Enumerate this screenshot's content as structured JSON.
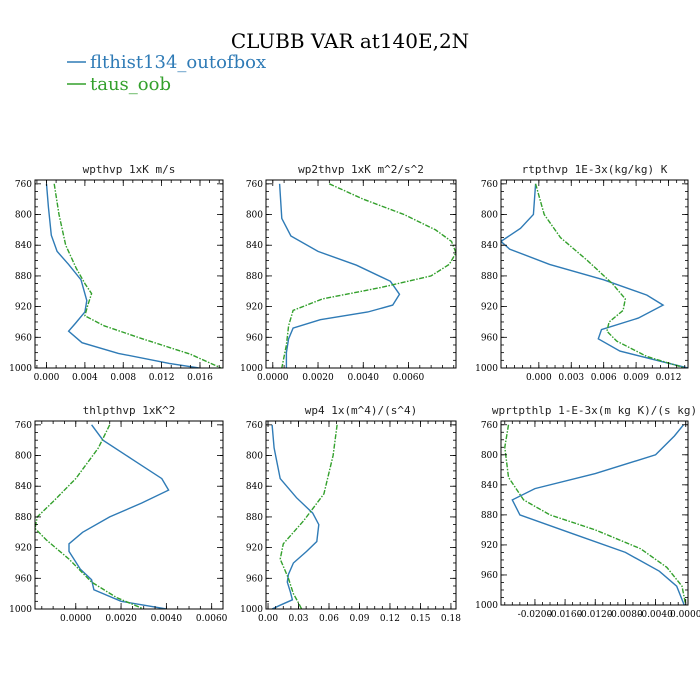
{
  "figure": {
    "title": "CLUBB VAR at140E,2N",
    "legend": [
      {
        "label": "flthist134_outofbox",
        "color": "#2f7bb6"
      },
      {
        "label": "taus_oob",
        "color": "#33a02c"
      }
    ]
  },
  "chart_data": [
    {
      "type": "line",
      "title": "wpthvp   1xK m/s",
      "xlim": [
        -0.0012,
        0.0184
      ],
      "ylim": [
        1000,
        755
      ],
      "y_inverted": true,
      "xticks": [
        "0.000",
        "0.004",
        "0.008",
        "0.012",
        "0.016"
      ],
      "xtick_values": [
        0.0,
        0.004,
        0.008,
        0.012,
        0.016
      ],
      "yticks": [
        "760",
        "800",
        "840",
        "880",
        "920",
        "960",
        "1000"
      ],
      "ytick_values": [
        760,
        800,
        840,
        880,
        920,
        960,
        1000
      ],
      "series": [
        {
          "name": "flthist134_outofbox",
          "color": "#2f7bb6",
          "dashed": false,
          "x": [
            0.0,
            0.0002,
            0.0005,
            0.0011,
            0.0023,
            0.0036,
            0.0042,
            0.004,
            0.003,
            0.0023,
            0.0037,
            0.0075,
            0.0128,
            0.0159
          ],
          "y": [
            760,
            790,
            827,
            848,
            865,
            885,
            912,
            927,
            942,
            952,
            967,
            981,
            994,
            1000
          ]
        },
        {
          "name": "taus_oob",
          "color": "#33a02c",
          "dashed": true,
          "x": [
            0.0008,
            0.0013,
            0.002,
            0.0031,
            0.004,
            0.0047,
            0.0043,
            0.004,
            0.006,
            0.01,
            0.015,
            0.0182
          ],
          "y": [
            760,
            800,
            840,
            870,
            890,
            903,
            918,
            932,
            945,
            962,
            982,
            1000
          ]
        }
      ]
    },
    {
      "type": "line",
      "title": "wp2thvp   1xK m^2/s^2",
      "xlim": [
        -0.0003,
        0.0081
      ],
      "ylim": [
        1000,
        755
      ],
      "y_inverted": true,
      "xticks": [
        "0.0000",
        "0.0020",
        "0.0040",
        "0.0060"
      ],
      "xtick_values": [
        0.0,
        0.002,
        0.004,
        0.006
      ],
      "yticks": [
        "760",
        "800",
        "840",
        "880",
        "920",
        "960",
        "1000"
      ],
      "ytick_values": [
        760,
        800,
        840,
        880,
        920,
        960,
        1000
      ],
      "series": [
        {
          "name": "flthist134_outofbox",
          "color": "#2f7bb6",
          "dashed": false,
          "x": [
            0.0003,
            0.0004,
            0.0008,
            0.002,
            0.0037,
            0.0052,
            0.0056,
            0.0053,
            0.0042,
            0.0021,
            0.0009,
            0.0007,
            0.0006,
            0.0006
          ],
          "y": [
            760,
            805,
            828,
            848,
            866,
            887,
            904,
            918,
            927,
            937,
            948,
            962,
            980,
            1000
          ]
        },
        {
          "name": "taus_oob",
          "color": "#33a02c",
          "dashed": true,
          "x": [
            0.0025,
            0.004,
            0.0058,
            0.0072,
            0.0079,
            0.0081,
            0.0078,
            0.007,
            0.0048,
            0.0022,
            0.0009,
            0.0007,
            0.0006,
            0.0004
          ],
          "y": [
            760,
            780,
            800,
            820,
            835,
            850,
            865,
            880,
            895,
            910,
            925,
            945,
            970,
            1000
          ]
        }
      ]
    },
    {
      "type": "line",
      "title": "rtpthvp   1E-3x(kg/kg) K",
      "xlim": [
        -0.0035,
        0.0138
      ],
      "ylim": [
        1000,
        755
      ],
      "y_inverted": true,
      "xticks": [
        "0.000",
        "0.003",
        "0.006",
        "0.009",
        "0.012"
      ],
      "xtick_values": [
        0.0,
        0.003,
        0.006,
        0.009,
        0.012
      ],
      "yticks": [
        "760",
        "800",
        "840",
        "880",
        "920",
        "960",
        "1000"
      ],
      "ytick_values": [
        760,
        800,
        840,
        880,
        920,
        960,
        1000
      ],
      "series": [
        {
          "name": "flthist134_outofbox",
          "color": "#2f7bb6",
          "dashed": false,
          "x": [
            -0.0003,
            -0.0005,
            -0.0017,
            -0.0035,
            -0.0027,
            0.001,
            0.006,
            0.01,
            0.0115,
            0.0092,
            0.0058,
            0.0055,
            0.0075,
            0.0115,
            0.0138
          ],
          "y": [
            760,
            800,
            818,
            835,
            845,
            865,
            885,
            905,
            918,
            935,
            950,
            962,
            978,
            992,
            1000
          ]
        },
        {
          "name": "taus_oob",
          "color": "#33a02c",
          "dashed": true,
          "x": [
            -0.0003,
            0.0005,
            0.002,
            0.0045,
            0.0068,
            0.008,
            0.0078,
            0.0065,
            0.0063,
            0.0072,
            0.01,
            0.0135
          ],
          "y": [
            760,
            800,
            830,
            860,
            890,
            910,
            925,
            940,
            952,
            965,
            985,
            1000
          ]
        }
      ]
    },
    {
      "type": "line",
      "title": "thlpthvp   1xK^2",
      "xlim": [
        -0.0018,
        0.0065
      ],
      "ylim": [
        1000,
        755
      ],
      "y_inverted": true,
      "xticks": [
        "0.0000",
        "0.0020",
        "0.0040",
        "0.0060"
      ],
      "xtick_values": [
        0.0,
        0.002,
        0.004,
        0.006
      ],
      "yticks": [
        "760",
        "800",
        "840",
        "880",
        "920",
        "960",
        "1000"
      ],
      "ytick_values": [
        760,
        800,
        840,
        880,
        920,
        960,
        1000
      ],
      "series": [
        {
          "name": "flthist134_outofbox",
          "color": "#2f7bb6",
          "dashed": false,
          "x": [
            0.0007,
            0.0012,
            0.0025,
            0.0038,
            0.0041,
            0.0029,
            0.0015,
            0.0003,
            -0.0003,
            -0.0003,
            0.0002,
            0.0007,
            0.0008,
            0.002,
            0.004
          ],
          "y": [
            760,
            780,
            805,
            830,
            845,
            862,
            880,
            900,
            915,
            925,
            948,
            962,
            975,
            990,
            1000
          ]
        },
        {
          "name": "taus_oob",
          "color": "#33a02c",
          "dashed": true,
          "x": [
            0.0015,
            0.001,
            0.0,
            -0.001,
            -0.0017,
            -0.0018,
            -0.0013,
            -0.0003,
            0.0007,
            0.0018,
            0.003
          ],
          "y": [
            760,
            790,
            830,
            860,
            880,
            895,
            910,
            935,
            965,
            985,
            1000
          ]
        }
      ]
    },
    {
      "type": "line",
      "title": "wp4   1x(m^4)/(s^4)",
      "xlim": [
        -0.002,
        0.185
      ],
      "ylim": [
        1000,
        755
      ],
      "y_inverted": true,
      "xticks": [
        "0.00",
        "0.03",
        "0.06",
        "0.09",
        "0.12",
        "0.15",
        "0.18"
      ],
      "xtick_values": [
        0.0,
        0.03,
        0.06,
        0.09,
        0.12,
        0.15,
        0.18
      ],
      "yticks": [
        "760",
        "800",
        "840",
        "880",
        "920",
        "960",
        "1000"
      ],
      "ytick_values": [
        760,
        800,
        840,
        880,
        920,
        960,
        1000
      ],
      "series": [
        {
          "name": "flthist134_outofbox",
          "color": "#2f7bb6",
          "dashed": false,
          "x": [
            0.004,
            0.006,
            0.012,
            0.028,
            0.044,
            0.05,
            0.048,
            0.038,
            0.025,
            0.02,
            0.019,
            0.022,
            0.024,
            0.012,
            0.004
          ],
          "y": [
            760,
            790,
            830,
            855,
            875,
            890,
            912,
            925,
            940,
            955,
            965,
            978,
            988,
            995,
            1000
          ]
        },
        {
          "name": "taus_oob",
          "color": "#33a02c",
          "dashed": true,
          "x": [
            0.068,
            0.064,
            0.055,
            0.035,
            0.015,
            0.012,
            0.02,
            0.025,
            0.03,
            0.033
          ],
          "y": [
            760,
            800,
            850,
            885,
            915,
            935,
            960,
            980,
            992,
            1000
          ]
        }
      ]
    },
    {
      "type": "line",
      "title": "wprtpthlp   1-E-3x(m kg K)/(s kg)",
      "xlim": [
        -0.0245,
        0.0003
      ],
      "ylim": [
        1000,
        755
      ],
      "y_inverted": true,
      "xticks": [
        "-0.0200",
        "-0.0160",
        "-0.0120",
        "-0.0080",
        "-0.0040",
        "0.0000"
      ],
      "xtick_values": [
        -0.02,
        -0.016,
        -0.012,
        -0.008,
        -0.004,
        0.0
      ],
      "yticks": [
        "760",
        "800",
        "840",
        "880",
        "920",
        "960",
        "1000"
      ],
      "ytick_values": [
        760,
        800,
        840,
        880,
        920,
        960,
        1000
      ],
      "series": [
        {
          "name": "flthist134_outofbox",
          "color": "#2f7bb6",
          "dashed": false,
          "x": [
            -0.0003,
            -0.0015,
            -0.004,
            -0.012,
            -0.02,
            -0.023,
            -0.022,
            -0.015,
            -0.008,
            -0.0035,
            -0.0012,
            -0.0002
          ],
          "y": [
            760,
            775,
            800,
            825,
            845,
            860,
            880,
            905,
            930,
            955,
            975,
            1000
          ]
        },
        {
          "name": "taus_oob",
          "color": "#33a02c",
          "dashed": true,
          "x": [
            -0.0235,
            -0.024,
            -0.0235,
            -0.0215,
            -0.018,
            -0.012,
            -0.006,
            -0.0025,
            -0.0005,
            0.0
          ],
          "y": [
            760,
            790,
            830,
            860,
            880,
            900,
            925,
            950,
            975,
            1000
          ]
        }
      ]
    }
  ]
}
